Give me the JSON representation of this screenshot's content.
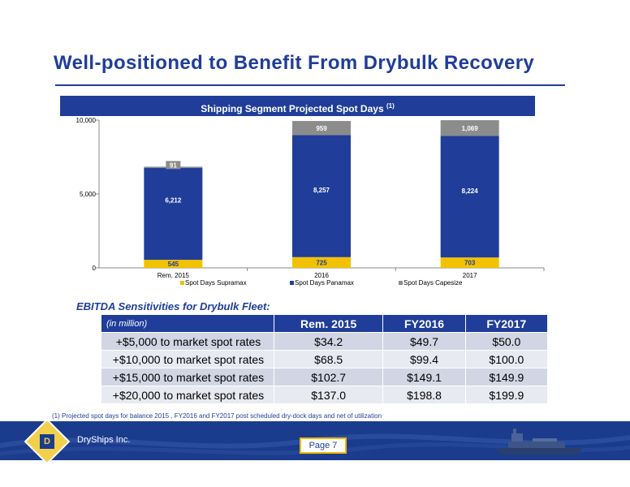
{
  "slide": {
    "title": "Well-positioned to Benefit From Drybulk Recovery"
  },
  "chart_header": {
    "title": "Shipping Segment Projected Spot Days",
    "note_marker": "(1)"
  },
  "chart_data": {
    "type": "bar",
    "stacked": true,
    "title": "Shipping Segment Projected Spot Days (1)",
    "categories": [
      "Rem. 2015",
      "2016",
      "2017"
    ],
    "series": [
      {
        "name": "Spot Days Supramax",
        "values": [
          545,
          725,
          703
        ],
        "labels": [
          "545",
          "725",
          "703"
        ],
        "color": "#f2c200"
      },
      {
        "name": "Spot Days Panamax",
        "values": [
          6212,
          8257,
          8224
        ],
        "labels": [
          "6,212",
          "8,257",
          "8,224"
        ],
        "color": "#1f3d99"
      },
      {
        "name": "Spot Days Capesize",
        "values": [
          91,
          959,
          1069
        ],
        "labels": [
          "91",
          "959",
          "1,069"
        ],
        "color": "#8c8c8c"
      }
    ],
    "ylim": [
      0,
      10000
    ],
    "yticks": [
      0,
      5000,
      10000
    ],
    "ytick_labels": [
      "0",
      "5,000",
      "10,000"
    ],
    "legend_position": "bottom",
    "grid": false
  },
  "sensitivity": {
    "heading": "EBITDA Sensitivities for Drybulk Fleet:",
    "corner_label": "(in million)",
    "columns": [
      "Rem. 2015",
      "FY2016",
      "FY2017"
    ],
    "rows": [
      {
        "label": "+$5,000 to market spot rates",
        "values": [
          "$34.2",
          "$49.7",
          "$50.0"
        ]
      },
      {
        "label": "+$10,000 to market spot rates",
        "values": [
          "$68.5",
          "$99.4",
          "$100.0"
        ]
      },
      {
        "label": "+$15,000 to market spot rates",
        "values": [
          "$102.7",
          "$149.1",
          "$149.9"
        ]
      },
      {
        "label": "+$20,000 to market spot rates",
        "values": [
          "$137.0",
          "$198.8",
          "$199.9"
        ]
      }
    ]
  },
  "footnote": "(1)    Projected spot days for balance 2015 , FY2016 and FY2017 post scheduled dry-dock days and net of utilization",
  "footer": {
    "company": "DryShips Inc.",
    "page": "Page 7",
    "logo_letter": "D"
  },
  "colors": {
    "brand_blue": "#1f3d99",
    "accent_yellow": "#f2c200",
    "capesize_gray": "#8c8c8c"
  }
}
